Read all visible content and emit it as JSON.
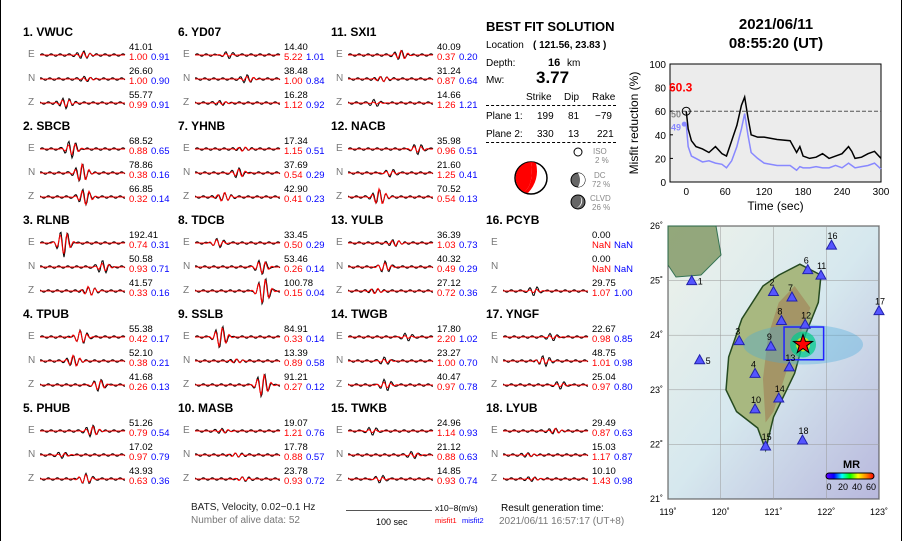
{
  "components": [
    "E",
    "N",
    "Z"
  ],
  "stations": [
    {
      "label": "1.  VWUC",
      "tr": [
        [
          "41.01",
          "1.00",
          "0.91"
        ],
        [
          "26.60",
          "1.00",
          "0.90"
        ],
        [
          "55.77",
          "0.99",
          "0.91"
        ]
      ]
    },
    {
      "label": "2.  SBCB",
      "tr": [
        [
          "68.52",
          "0.88",
          "0.65"
        ],
        [
          "78.86",
          "0.38",
          "0.16"
        ],
        [
          "66.85",
          "0.32",
          "0.14"
        ]
      ]
    },
    {
      "label": "3.  RLNB",
      "tr": [
        [
          "192.41",
          "0.74",
          "0.31"
        ],
        [
          "50.58",
          "0.93",
          "0.71"
        ],
        [
          "41.57",
          "0.33",
          "0.16"
        ]
      ]
    },
    {
      "label": "4.  TPUB",
      "tr": [
        [
          "55.38",
          "0.42",
          "0.17"
        ],
        [
          "52.10",
          "0.38",
          "0.21"
        ],
        [
          "41.68",
          "0.26",
          "0.13"
        ]
      ]
    },
    {
      "label": "5.  PHUB",
      "tr": [
        [
          "51.26",
          "0.79",
          "0.54"
        ],
        [
          "17.02",
          "0.97",
          "0.79"
        ],
        [
          "43.93",
          "0.63",
          "0.36"
        ]
      ]
    },
    {
      "label": "6.  YD07",
      "tr": [
        [
          "14.40",
          "5.22",
          "1.01"
        ],
        [
          "38.48",
          "1.00",
          "0.84"
        ],
        [
          "16.28",
          "1.12",
          "0.92"
        ]
      ]
    },
    {
      "label": "7.  YHNB",
      "tr": [
        [
          "17.34",
          "1.15",
          "0.51"
        ],
        [
          "37.69",
          "0.54",
          "0.29"
        ],
        [
          "42.90",
          "0.41",
          "0.23"
        ]
      ]
    },
    {
      "label": "8.  TDCB",
      "tr": [
        [
          "33.45",
          "0.50",
          "0.29"
        ],
        [
          "53.46",
          "0.26",
          "0.14"
        ],
        [
          "100.78",
          "0.15",
          "0.04"
        ]
      ]
    },
    {
      "label": "9.  SSLB",
      "tr": [
        [
          "84.91",
          "0.33",
          "0.14"
        ],
        [
          "13.39",
          "0.89",
          "0.58"
        ],
        [
          "91.21",
          "0.27",
          "0.12"
        ]
      ]
    },
    {
      "label": "10. MASB",
      "tr": [
        [
          "19.07",
          "1.21",
          "0.76"
        ],
        [
          "17.78",
          "0.88",
          "0.57"
        ],
        [
          "23.78",
          "0.93",
          "0.72"
        ]
      ]
    },
    {
      "label": "11. SXI1",
      "tr": [
        [
          "40.09",
          "0.37",
          "0.20"
        ],
        [
          "31.24",
          "0.87",
          "0.64"
        ],
        [
          "14.66",
          "1.26",
          "1.21"
        ]
      ]
    },
    {
      "label": "12. NACB",
      "tr": [
        [
          "35.98",
          "0.96",
          "0.51"
        ],
        [
          "21.60",
          "1.25",
          "0.41"
        ],
        [
          "70.52",
          "0.54",
          "0.13"
        ]
      ]
    },
    {
      "label": "13. YULB",
      "tr": [
        [
          "36.39",
          "1.03",
          "0.73"
        ],
        [
          "40.32",
          "0.49",
          "0.29"
        ],
        [
          "27.12",
          "0.72",
          "0.36"
        ]
      ]
    },
    {
      "label": "14. TWGB",
      "tr": [
        [
          "17.80",
          "2.20",
          "1.02"
        ],
        [
          "23.27",
          "1.00",
          "0.70"
        ],
        [
          "40.47",
          "0.97",
          "0.78"
        ]
      ]
    },
    {
      "label": "15. TWKB",
      "tr": [
        [
          "24.96",
          "1.14",
          "0.93"
        ],
        [
          "21.12",
          "0.88",
          "0.63"
        ],
        [
          "14.85",
          "0.93",
          "0.74"
        ]
      ]
    },
    {
      "label": "16. PCYB",
      "tr": [
        [
          "0.00",
          "NaN",
          "NaN"
        ],
        [
          "0.00",
          "NaN",
          "NaN"
        ],
        [
          "29.75",
          "1.07",
          "1.00"
        ]
      ]
    },
    {
      "label": "17. YNGF",
      "tr": [
        [
          "22.67",
          "0.98",
          "0.85"
        ],
        [
          "48.75",
          "1.01",
          "0.98"
        ],
        [
          "25.04",
          "0.97",
          "0.80"
        ]
      ]
    },
    {
      "label": "18. LYUB",
      "tr": [
        [
          "29.49",
          "0.87",
          "0.63"
        ],
        [
          "15.03",
          "1.17",
          "0.87"
        ],
        [
          "10.10",
          "1.43",
          "0.98"
        ]
      ]
    }
  ],
  "solution": {
    "title": "BEST FIT SOLUTION",
    "location_label": "Location",
    "location": "( 121.56,  23.83 )",
    "depth_label": "Depth:",
    "depth": "16",
    "depth_unit": "km",
    "mw_label": "Mw:",
    "mw": "3.77",
    "headers": [
      "Strike",
      "Dip",
      "Rake"
    ],
    "plane1": [
      "Plane 1:",
      "199",
      "81",
      "−79"
    ],
    "plane2": [
      "Plane 2:",
      "330",
      "13",
      "221"
    ],
    "iso": [
      "ISO",
      "2 %"
    ],
    "dc": [
      "DC",
      "72 %"
    ],
    "clvd": [
      "CLVD",
      "26 %"
    ]
  },
  "footer": {
    "info": "BATS, Velocity, 0.02−0.1 Hz",
    "alive": "Number of alive data: 52",
    "scale": "100 sec",
    "units": "x10−8(m/s)",
    "misfit1": "misfit1",
    "misfit2": "misfit2",
    "gen_label": "Result generation time:",
    "gen_time": "2021/06/11 16:57:17 (UT+8)"
  },
  "header": {
    "date": "2021/06/11",
    "time": "08:55:20  (UT)"
  },
  "chart_data": {
    "type": "line",
    "xlabel": "Time (sec)",
    "ylabel": "Misfit reduction (%)",
    "xlim": [
      -25,
      300
    ],
    "ylim": [
      0,
      100
    ],
    "xticks": [
      "0",
      "60",
      "120",
      "180",
      "240",
      "300"
    ],
    "yticks": [
      "0",
      "20",
      "40",
      "60",
      "80",
      "100"
    ],
    "ref_line": 60,
    "best_label": "60.3",
    "black_label": "50",
    "blue_label": "49",
    "t": [
      0,
      3,
      8,
      15,
      25,
      35,
      45,
      55,
      62,
      70,
      78,
      85,
      90,
      95,
      100,
      110,
      120,
      140,
      160,
      170,
      175,
      180,
      190,
      200,
      210,
      220,
      230,
      240,
      250,
      255,
      260,
      270,
      280,
      290,
      300
    ],
    "series": [
      {
        "name": "misfit reduction",
        "color": "#000",
        "values": [
          60,
          45,
          35,
          30,
          28,
          25,
          30,
          24,
          22,
          35,
          48,
          65,
          72,
          55,
          40,
          38,
          38,
          36,
          35,
          25,
          30,
          22,
          20,
          21,
          24,
          20,
          22,
          24,
          30,
          26,
          20,
          21,
          24,
          26,
          20
        ]
      },
      {
        "name": "blue",
        "color": "#8888ff",
        "values": [
          49,
          30,
          22,
          20,
          17,
          18,
          16,
          15,
          12,
          18,
          30,
          45,
          58,
          40,
          25,
          20,
          16,
          14,
          14,
          10,
          13,
          12,
          12,
          13,
          12,
          12,
          14,
          12,
          16,
          14,
          12,
          13,
          14,
          16,
          11
        ]
      }
    ]
  },
  "map": {
    "colorbar_title": "MR",
    "colorbar_ticks": [
      "0",
      "20",
      "40",
      "60"
    ],
    "lon_ticks": [
      "119˚",
      "120˚",
      "121˚",
      "122˚",
      "123˚"
    ],
    "lat_ticks": [
      "26˚",
      "25˚",
      "24˚",
      "23˚",
      "22˚",
      "21˚"
    ],
    "epicenter": [
      121.56,
      23.83
    ],
    "stations": [
      [
        "1",
        119.45,
        25.0
      ],
      [
        "2",
        121.0,
        24.8
      ],
      [
        "3",
        120.35,
        23.9
      ],
      [
        "4",
        120.65,
        23.3
      ],
      [
        "5",
        119.6,
        23.55
      ],
      [
        "6",
        121.65,
        25.2
      ],
      [
        "7",
        121.35,
        24.7
      ],
      [
        "8",
        121.15,
        24.27
      ],
      [
        "9",
        120.95,
        23.8
      ],
      [
        "10",
        120.65,
        22.65
      ],
      [
        "11",
        121.9,
        25.1
      ],
      [
        "12",
        121.6,
        24.2
      ],
      [
        "13",
        121.3,
        23.42
      ],
      [
        "14",
        121.1,
        22.85
      ],
      [
        "15",
        120.85,
        21.97
      ],
      [
        "16",
        122.1,
        25.65
      ],
      [
        "17",
        123.0,
        24.45
      ],
      [
        "18",
        121.55,
        22.08
      ]
    ]
  }
}
